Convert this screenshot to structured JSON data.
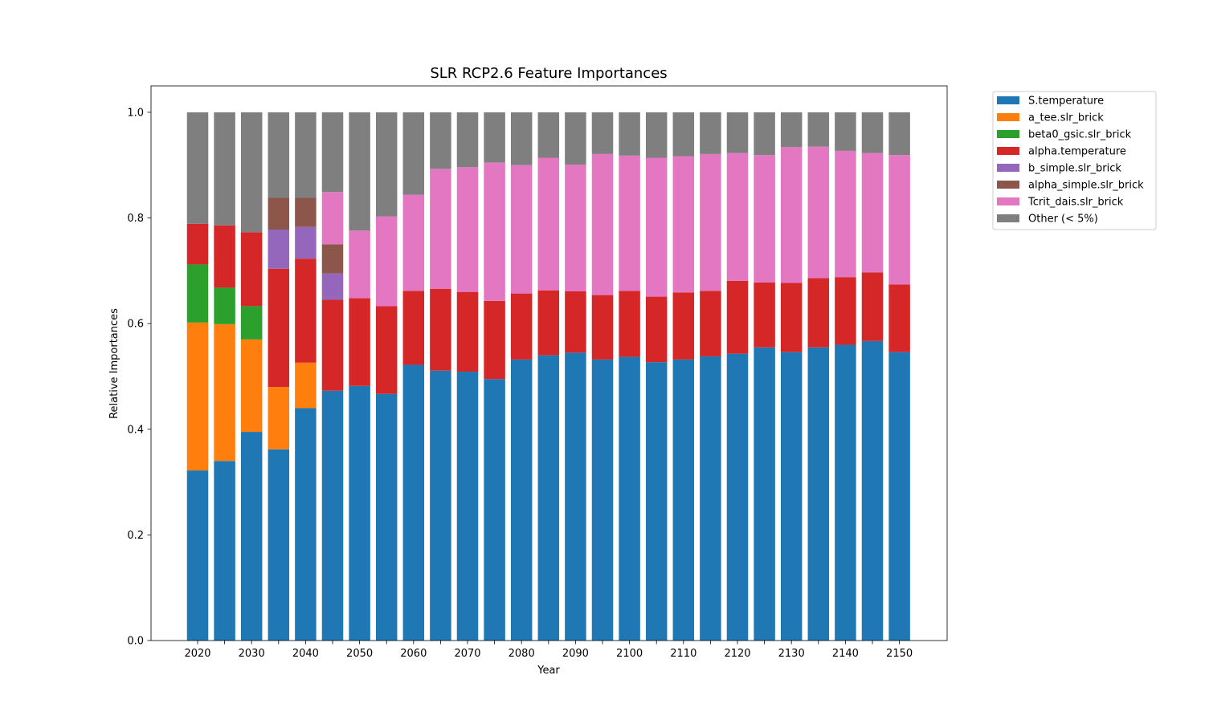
{
  "chart_data": {
    "type": "bar",
    "stacked": true,
    "title": "SLR RCP2.6 Feature Importances",
    "xlabel": "Year",
    "ylabel": "Relative Importances",
    "ylim": [
      0,
      1.05
    ],
    "yticks": [
      "0.0",
      "0.2",
      "0.4",
      "0.6",
      "0.8",
      "1.0"
    ],
    "ytick_values": [
      0,
      0.2,
      0.4,
      0.6,
      0.8,
      1.0
    ],
    "categories": [
      2020,
      2025,
      2030,
      2035,
      2040,
      2045,
      2050,
      2055,
      2060,
      2065,
      2070,
      2075,
      2080,
      2085,
      2090,
      2095,
      2100,
      2105,
      2110,
      2115,
      2120,
      2125,
      2130,
      2135,
      2140,
      2145,
      2150
    ],
    "xtick_labels": [
      "2020",
      "",
      "2030",
      "",
      "2040",
      "",
      "2050",
      "",
      "2060",
      "",
      "2070",
      "",
      "2080",
      "",
      "2090",
      "",
      "2100",
      "",
      "2110",
      "",
      "2120",
      "",
      "2130",
      "",
      "2140",
      "",
      "2150"
    ],
    "legend_position": "outside-top-right",
    "series": [
      {
        "name": "S.temperature",
        "color": "#1f77b4",
        "values": [
          0.322,
          0.34,
          0.395,
          0.362,
          0.44,
          0.473,
          0.482,
          0.467,
          0.522,
          0.511,
          0.509,
          0.495,
          0.532,
          0.54,
          0.545,
          0.532,
          0.537,
          0.527,
          0.532,
          0.538,
          0.543,
          0.555,
          0.546,
          0.555,
          0.56,
          0.567,
          0.546
        ]
      },
      {
        "name": "a_tee.slr_brick",
        "color": "#ff7f0e",
        "values": [
          0.28,
          0.259,
          0.175,
          0.118,
          0.086,
          0,
          0,
          0,
          0,
          0,
          0,
          0,
          0,
          0,
          0,
          0,
          0,
          0,
          0,
          0,
          0,
          0,
          0,
          0,
          0,
          0,
          0
        ]
      },
      {
        "name": "beta0_gsic.slr_brick",
        "color": "#2ca02c",
        "values": [
          0.11,
          0.069,
          0.063,
          0,
          0,
          0,
          0,
          0,
          0,
          0,
          0,
          0,
          0,
          0,
          0,
          0,
          0,
          0,
          0,
          0,
          0,
          0,
          0,
          0,
          0,
          0,
          0
        ]
      },
      {
        "name": "alpha.temperature",
        "color": "#d62728",
        "values": [
          0.077,
          0.118,
          0.14,
          0.224,
          0.197,
          0.172,
          0.166,
          0.166,
          0.14,
          0.155,
          0.151,
          0.148,
          0.125,
          0.123,
          0.116,
          0.122,
          0.125,
          0.124,
          0.127,
          0.124,
          0.138,
          0.123,
          0.131,
          0.131,
          0.128,
          0.13,
          0.128
        ]
      },
      {
        "name": "b_simple.slr_brick",
        "color": "#9467bd",
        "values": [
          0,
          0,
          0,
          0.074,
          0.06,
          0.05,
          0,
          0,
          0,
          0,
          0,
          0,
          0,
          0,
          0,
          0,
          0,
          0,
          0,
          0,
          0,
          0,
          0,
          0,
          0,
          0,
          0
        ]
      },
      {
        "name": "alpha_simple.slr_brick",
        "color": "#8c564b",
        "values": [
          0,
          0,
          0,
          0.06,
          0.055,
          0.055,
          0,
          0,
          0,
          0,
          0,
          0,
          0,
          0,
          0,
          0,
          0,
          0,
          0,
          0,
          0,
          0,
          0,
          0,
          0,
          0,
          0
        ]
      },
      {
        "name": "Tcrit_dais.slr_brick",
        "color": "#e377c2",
        "values": [
          0,
          0,
          0,
          0,
          0,
          0.099,
          0.128,
          0.17,
          0.182,
          0.227,
          0.236,
          0.262,
          0.243,
          0.251,
          0.24,
          0.267,
          0.256,
          0.263,
          0.258,
          0.259,
          0.242,
          0.241,
          0.257,
          0.249,
          0.239,
          0.226,
          0.245
        ]
      },
      {
        "name": "Other (< 5%)",
        "color": "#7f7f7f",
        "values": [
          0.211,
          0.214,
          0.227,
          0.162,
          0.162,
          0.151,
          0.224,
          0.197,
          0.156,
          0.107,
          0.104,
          0.095,
          0.1,
          0.086,
          0.099,
          0.079,
          0.082,
          0.086,
          0.083,
          0.079,
          0.077,
          0.081,
          0.066,
          0.065,
          0.073,
          0.077,
          0.081
        ]
      }
    ]
  }
}
